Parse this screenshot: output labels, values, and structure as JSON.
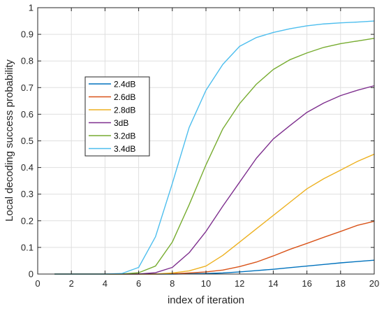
{
  "chart_data": {
    "type": "line",
    "title": "",
    "xlabel": "index of iteration",
    "ylabel": "Local decoding success probability",
    "xlim": [
      0,
      20
    ],
    "ylim": [
      0,
      1
    ],
    "xticks": [
      0,
      2,
      4,
      6,
      8,
      10,
      12,
      14,
      16,
      18,
      20
    ],
    "yticks": [
      0,
      0.1,
      0.2,
      0.3,
      0.4,
      0.5,
      0.6,
      0.7,
      0.8,
      0.9,
      1
    ],
    "xtick_labels": [
      "0",
      "2",
      "4",
      "6",
      "8",
      "10",
      "12",
      "14",
      "16",
      "18",
      "20"
    ],
    "ytick_labels": [
      "0",
      "0.1",
      "0.2",
      "0.3",
      "0.4",
      "0.5",
      "0.6",
      "0.7",
      "0.8",
      "0.9",
      "1"
    ],
    "grid": true,
    "legend_position": "middle-left",
    "x": [
      1,
      2,
      3,
      4,
      5,
      6,
      7,
      8,
      9,
      10,
      11,
      12,
      13,
      14,
      15,
      16,
      17,
      18,
      19,
      20
    ],
    "series": [
      {
        "name": "2.4dB",
        "color": "#0072BD",
        "values": [
          0,
          0,
          0,
          0,
          0,
          0,
          0,
          0,
          0.001,
          0.002,
          0.004,
          0.008,
          0.013,
          0.018,
          0.024,
          0.03,
          0.036,
          0.042,
          0.047,
          0.052
        ]
      },
      {
        "name": "2.6dB",
        "color": "#D95319",
        "values": [
          0,
          0,
          0,
          0,
          0,
          0,
          0,
          0.001,
          0.004,
          0.008,
          0.015,
          0.028,
          0.045,
          0.068,
          0.093,
          0.115,
          0.138,
          0.16,
          0.183,
          0.198
        ]
      },
      {
        "name": "2.8dB",
        "color": "#EDB120",
        "values": [
          0,
          0,
          0,
          0,
          0,
          0,
          0,
          0.004,
          0.012,
          0.03,
          0.07,
          0.12,
          0.17,
          0.22,
          0.27,
          0.32,
          0.358,
          0.39,
          0.423,
          0.45
        ]
      },
      {
        "name": "3dB",
        "color": "#7E2F8E",
        "values": [
          0,
          0,
          0,
          0,
          0,
          0,
          0.005,
          0.025,
          0.08,
          0.16,
          0.255,
          0.345,
          0.435,
          0.507,
          0.558,
          0.607,
          0.642,
          0.67,
          0.69,
          0.707
        ]
      },
      {
        "name": "3.2dB",
        "color": "#77AC30",
        "values": [
          0,
          0,
          0,
          0,
          0,
          0.005,
          0.03,
          0.12,
          0.26,
          0.41,
          0.545,
          0.64,
          0.713,
          0.768,
          0.805,
          0.83,
          0.851,
          0.865,
          0.875,
          0.885
        ]
      },
      {
        "name": "3.4dB",
        "color": "#4DBEEE",
        "values": [
          0,
          0,
          0,
          0,
          0.002,
          0.025,
          0.14,
          0.34,
          0.55,
          0.69,
          0.787,
          0.855,
          0.888,
          0.907,
          0.921,
          0.932,
          0.939,
          0.943,
          0.946,
          0.95
        ]
      }
    ]
  }
}
